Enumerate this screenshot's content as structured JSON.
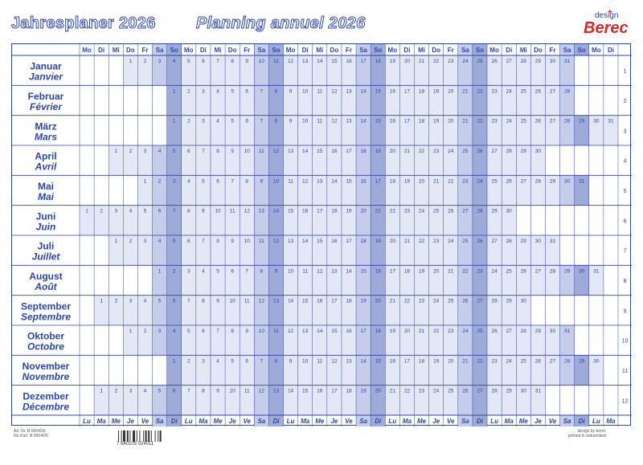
{
  "header": {
    "title_de": "Jahresplaner 2026",
    "title_fr": "Planning annuel 2026",
    "brand_small": "design",
    "brand": "Berec"
  },
  "weekday_header_top": [
    "Mo",
    "Di",
    "Mi",
    "Do",
    "Fr",
    "Sa",
    "So"
  ],
  "weekday_header_bottom": [
    "Lu",
    "Ma",
    "Me",
    "Je",
    "Ve",
    "Sa",
    "Di"
  ],
  "months": [
    {
      "de": "Januar",
      "fr": "Janvier",
      "first_col": 3,
      "days": 31,
      "row": "1"
    },
    {
      "de": "Februar",
      "fr": "Février",
      "first_col": 6,
      "days": 28,
      "row": "2"
    },
    {
      "de": "März",
      "fr": "Mars",
      "first_col": 6,
      "days": 31,
      "row": "3"
    },
    {
      "de": "April",
      "fr": "Avril",
      "first_col": 2,
      "days": 30,
      "row": "4"
    },
    {
      "de": "Mai",
      "fr": "Mai",
      "first_col": 4,
      "days": 31,
      "row": "5"
    },
    {
      "de": "Juni",
      "fr": "Juin",
      "first_col": 0,
      "days": 30,
      "row": "6"
    },
    {
      "de": "Juli",
      "fr": "Juillet",
      "first_col": 2,
      "days": 31,
      "row": "7"
    },
    {
      "de": "August",
      "fr": "Août",
      "first_col": 5,
      "days": 31,
      "row": "8"
    },
    {
      "de": "September",
      "fr": "Septembre",
      "first_col": 1,
      "days": 30,
      "row": "9"
    },
    {
      "de": "Oktober",
      "fr": "Octobre",
      "first_col": 3,
      "days": 31,
      "row": "10"
    },
    {
      "de": "November",
      "fr": "Novembre",
      "first_col": 6,
      "days": 30,
      "row": "11"
    },
    {
      "de": "Dezember",
      "fr": "Décembre",
      "first_col": 1,
      "days": 31,
      "row": "12"
    }
  ],
  "footer": {
    "left_1": "Art. Nr. B 5604/26",
    "left_2": "No d'art. B 5604/26",
    "barcode_number": "7 640105 024011",
    "right_1": "design by berec",
    "right_2": "printed in switzerland"
  },
  "colors": {
    "accent": "#2b46a8",
    "weekend_sat": "#c5cdeb",
    "weekend_sun": "#9eaad8",
    "day_cell": "#e4e8f6",
    "brand_red": "#d62b2b"
  }
}
